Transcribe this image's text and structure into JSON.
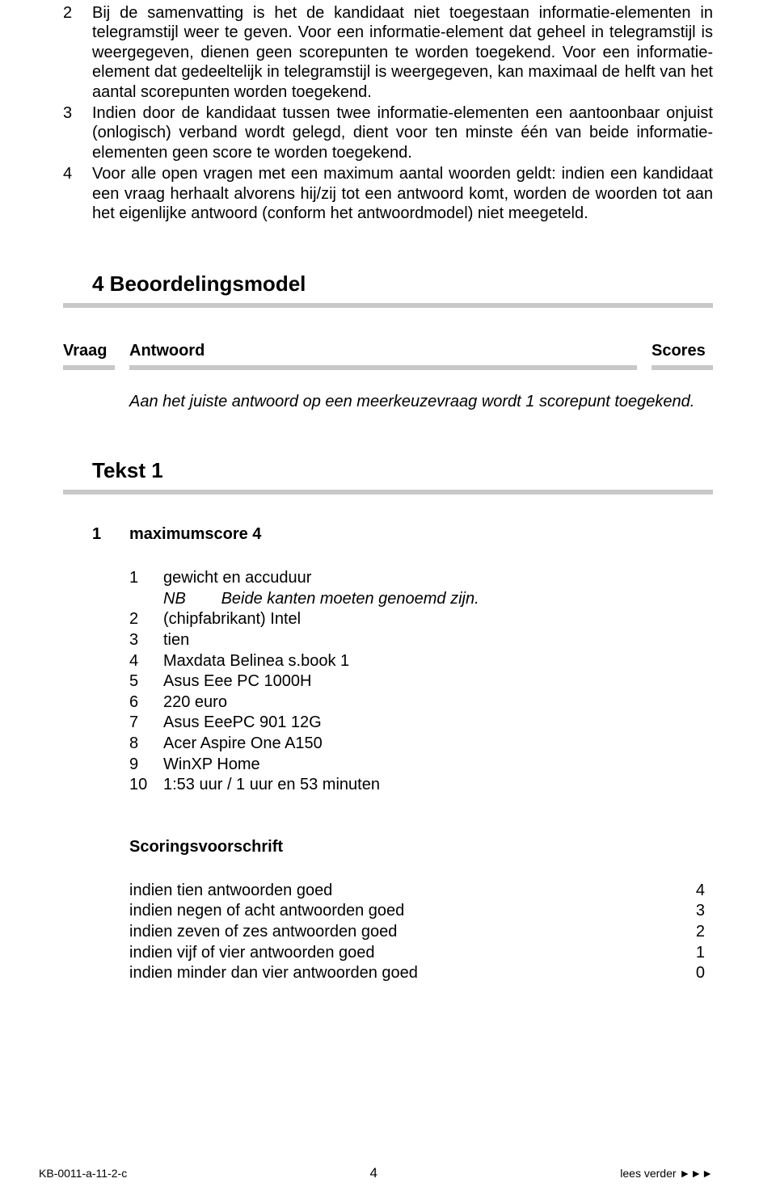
{
  "rules": [
    {
      "n": "2",
      "text": "Bij de samenvatting is het de kandidaat niet toegestaan informatie-elementen in telegramstijl weer te geven. Voor een informatie-element dat geheel in telegramstijl is weergegeven, dienen geen scorepunten te worden toegekend. Voor een informatie-element dat gedeeltelijk in telegramstijl is weergegeven, kan maximaal de helft van het aantal scorepunten worden toegekend."
    },
    {
      "n": "3",
      "text": "Indien door de kandidaat tussen twee informatie-elementen een aantoonbaar onjuist (onlogisch) verband wordt gelegd, dient voor ten minste één van beide informatie-elementen geen score te worden toegekend."
    },
    {
      "n": "4",
      "text": "Voor alle open vragen met een maximum aantal woorden geldt: indien een kandidaat een vraag herhaalt alvorens hij/zij tot een antwoord komt, worden de woorden tot aan het eigenlijke antwoord (conform het antwoordmodel) niet meegeteld."
    }
  ],
  "section4_title": "4 Beoordelingsmodel",
  "vas": {
    "vraag": "Vraag",
    "antwoord": "Antwoord",
    "scores": "Scores"
  },
  "mc_note": "Aan het juiste antwoord op een meerkeuzevraag wordt 1 scorepunt toegekend.",
  "tekst1_title": "Tekst 1",
  "q1": {
    "num": "1",
    "label": "maximumscore 4"
  },
  "answers": [
    {
      "n": "1",
      "text": "gewicht en accuduur"
    },
    {
      "nb_label": "NB",
      "nb_text": "Beide kanten moeten genoemd zijn."
    },
    {
      "n": "2",
      "text": "(chipfabrikant) Intel"
    },
    {
      "n": "3",
      "text": "tien"
    },
    {
      "n": "4",
      "text": "Maxdata Belinea s.book 1"
    },
    {
      "n": "5",
      "text": "Asus Eee PC 1000H"
    },
    {
      "n": "6",
      "text": "220 euro"
    },
    {
      "n": "7",
      "text": "Asus EeePC 901 12G"
    },
    {
      "n": "8",
      "text": "Acer Aspire One A150"
    },
    {
      "n": "9",
      "text": "WinXP Home"
    },
    {
      "n": "10",
      "text": "1:53 uur / 1 uur en 53 minuten"
    }
  ],
  "scoring_head": "Scoringsvoorschrift",
  "scoring": [
    {
      "text": "indien tien antwoorden goed",
      "score": "4"
    },
    {
      "text": "indien negen of acht antwoorden goed",
      "score": "3"
    },
    {
      "text": "indien zeven of zes antwoorden goed",
      "score": "2"
    },
    {
      "text": "indien vijf of vier antwoorden goed",
      "score": "1"
    },
    {
      "text": "indien minder dan vier antwoorden goed",
      "score": "0"
    }
  ],
  "footer": {
    "code": "KB-0011-a-11-2-c",
    "page": "4",
    "next": "lees verder ►►►"
  }
}
